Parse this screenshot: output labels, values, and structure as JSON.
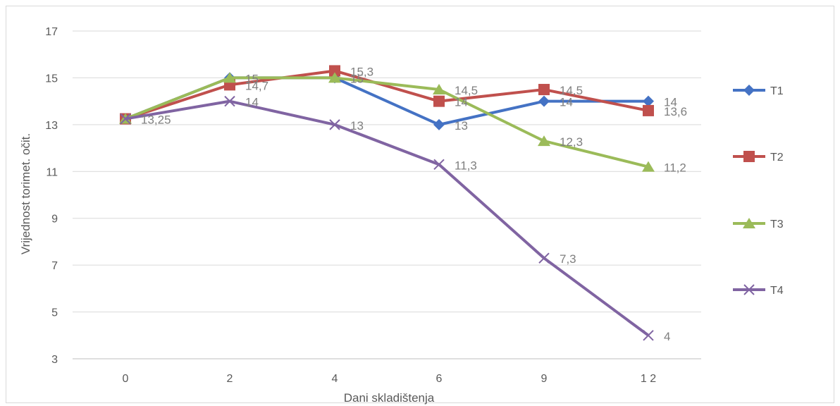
{
  "chart_data": {
    "type": "line",
    "title": "",
    "xlabel": "Dani skladištenja",
    "ylabel": "Vrijednost torimet. očit.",
    "categories": [
      "0",
      "2",
      "4",
      "6",
      "9",
      "12"
    ],
    "category_display": [
      "0",
      "2",
      "4",
      "6",
      "9",
      "1 2"
    ],
    "ylim": [
      3,
      17
    ],
    "yticks": [
      "3",
      "5",
      "7",
      "9",
      "11",
      "13",
      "15",
      "17"
    ],
    "grid": true,
    "legend_position": "right",
    "series": [
      {
        "name": "T1",
        "color": "#4472c4",
        "marker": "diamond",
        "values": [
          13.25,
          15,
          15,
          13,
          14,
          14
        ],
        "labels": [
          "",
          "15",
          "15",
          "13",
          "14",
          "14"
        ]
      },
      {
        "name": "T2",
        "color": "#c0504d",
        "marker": "square",
        "values": [
          13.25,
          14.7,
          15.3,
          14,
          14.5,
          13.6
        ],
        "labels": [
          "",
          "14,7",
          "15,3",
          "14",
          "14,5",
          "13,6"
        ]
      },
      {
        "name": "T3",
        "color": "#9bbb59",
        "marker": "triangle",
        "values": [
          13.25,
          15,
          15,
          14.5,
          12.3,
          11.2
        ],
        "labels": [
          "",
          "",
          "",
          "14,5",
          "12,3",
          "11,2"
        ]
      },
      {
        "name": "T4",
        "color": "#8064a2",
        "marker": "x",
        "values": [
          13.25,
          14,
          13,
          11.3,
          7.3,
          4
        ],
        "labels": [
          "13,25",
          "14",
          "13",
          "11,3",
          "7,3",
          "4"
        ]
      }
    ]
  }
}
